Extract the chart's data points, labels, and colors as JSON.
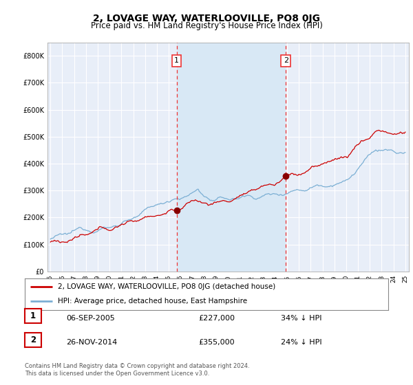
{
  "title": "2, LOVAGE WAY, WATERLOOVILLE, PO8 0JG",
  "subtitle": "Price paid vs. HM Land Registry's House Price Index (HPI)",
  "legend_line1": "2, LOVAGE WAY, WATERLOOVILLE, PO8 0JG (detached house)",
  "legend_line2": "HPI: Average price, detached house, East Hampshire",
  "transaction1_date": "06-SEP-2005",
  "transaction1_price": "£227,000",
  "transaction1_hpi": "34% ↓ HPI",
  "transaction2_date": "26-NOV-2014",
  "transaction2_price": "£355,000",
  "transaction2_hpi": "24% ↓ HPI",
  "footer": "Contains HM Land Registry data © Crown copyright and database right 2024.\nThis data is licensed under the Open Government Licence v3.0.",
  "ylim": [
    0,
    850000
  ],
  "yticks": [
    0,
    100000,
    200000,
    300000,
    400000,
    500000,
    600000,
    700000,
    800000
  ],
  "xlim_start": 1994.75,
  "xlim_end": 2025.3,
  "transaction1_x": 2005.67,
  "transaction1_y": 227000,
  "transaction2_x": 2014.9,
  "transaction2_y": 355000,
  "red_line_color": "#cc0000",
  "blue_line_color": "#7bafd4",
  "dashed_line_color": "#ee3333",
  "shaded_color": "#d8e8f5",
  "background_color": "#ffffff",
  "plot_bg_color": "#e8eef8",
  "grid_color": "#ffffff",
  "title_fontsize": 10,
  "subtitle_fontsize": 8.5
}
